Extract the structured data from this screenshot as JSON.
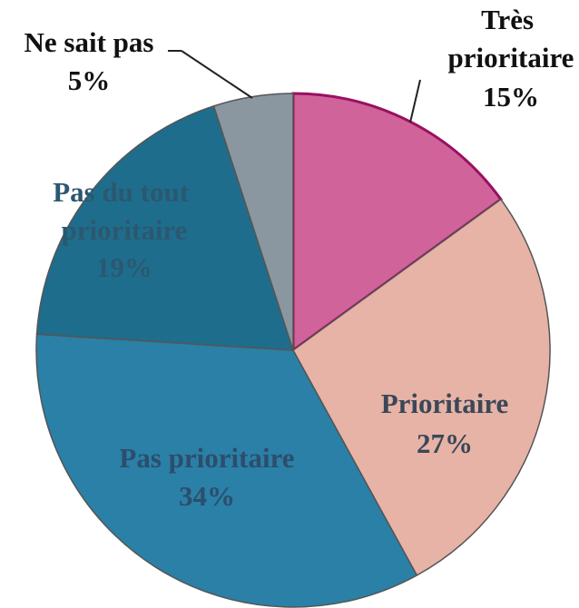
{
  "chart_data": {
    "type": "pie",
    "categories": [
      "Très prioritaire",
      "Prioritaire",
      "Pas prioritaire",
      "Pas du tout prioritaire",
      "Ne sait pas"
    ],
    "values": [
      15,
      27,
      34,
      19,
      5
    ],
    "value_labels": [
      "15%",
      "27%",
      "34%",
      "19%",
      "5%"
    ],
    "colors": [
      "#d0639a",
      "#e6b3a6",
      "#2a80a6",
      "#1f6d8c",
      "#8a96a0"
    ]
  }
}
